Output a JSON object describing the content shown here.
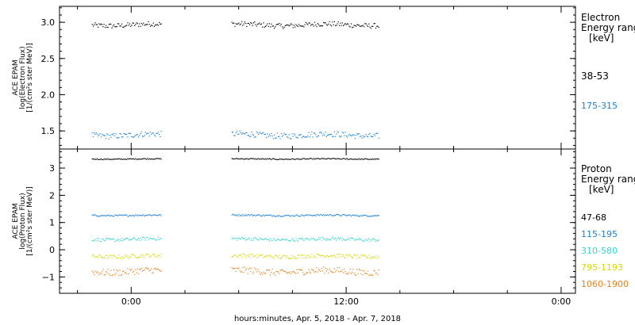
{
  "chart_data": [
    {
      "type": "scatter",
      "ylabel_lines": [
        "ACE EPAM",
        "log(Electron Flux)",
        "[1/(cm²s ster MeV)]"
      ],
      "ylim": [
        1.25,
        3.22
      ],
      "yticks": [
        1.5,
        2.0,
        2.5,
        3.0
      ],
      "ytick_labels": [
        "1.5",
        "2.0",
        "2.5",
        "3.0"
      ],
      "legend_title_lines": [
        "Electron",
        "Energy ranges",
        "[keV]"
      ],
      "series": [
        {
          "name": "38-53",
          "color": "#000000",
          "level": 2.97,
          "jitter": 0.035
        },
        {
          "name": "175-315",
          "color": "#1a7fd6",
          "level": 1.45,
          "jitter": 0.04
        }
      ],
      "gaps_hours": [
        [
          -2.2,
          1.7
        ],
        [
          5.6,
          13.8
        ]
      ]
    },
    {
      "type": "scatter",
      "ylabel_lines": [
        "ACE EPAM",
        "log(Proton Flux)",
        "[1/(cm²s ster MeV)]"
      ],
      "ylim": [
        -1.6,
        3.7
      ],
      "yticks": [
        -1,
        0,
        1,
        2,
        3
      ],
      "ytick_labels": [
        "−1",
        "0",
        "1",
        "2",
        "3"
      ],
      "legend_title_lines": [
        "Proton",
        "Energy ranges",
        "[keV]"
      ],
      "series": [
        {
          "name": "47-68",
          "color": "#000000",
          "level": 3.35,
          "jitter": 0.02
        },
        {
          "name": "115-195",
          "color": "#1a7fd6",
          "level": 1.28,
          "jitter": 0.03
        },
        {
          "name": "310-580",
          "color": "#2fd6cf",
          "level": 0.4,
          "jitter": 0.06
        },
        {
          "name": "795-1193",
          "color": "#d8d800",
          "level": -0.22,
          "jitter": 0.07
        },
        {
          "name": "1060-1900",
          "color": "#e87f1b",
          "level": -0.78,
          "jitter": 0.12
        }
      ],
      "gaps_hours": [
        [
          -2.2,
          1.7
        ],
        [
          5.6,
          13.8
        ]
      ]
    }
  ],
  "x_axis": {
    "xlim_hours": [
      -4.0,
      24.8
    ],
    "major_ticks_hours": [
      0,
      12,
      24
    ],
    "tick_labels": [
      "0:00",
      "12:00",
      "0:00"
    ],
    "xlabel": "hours:minutes, Apr.  5, 2018 - Apr.  7, 2018"
  }
}
